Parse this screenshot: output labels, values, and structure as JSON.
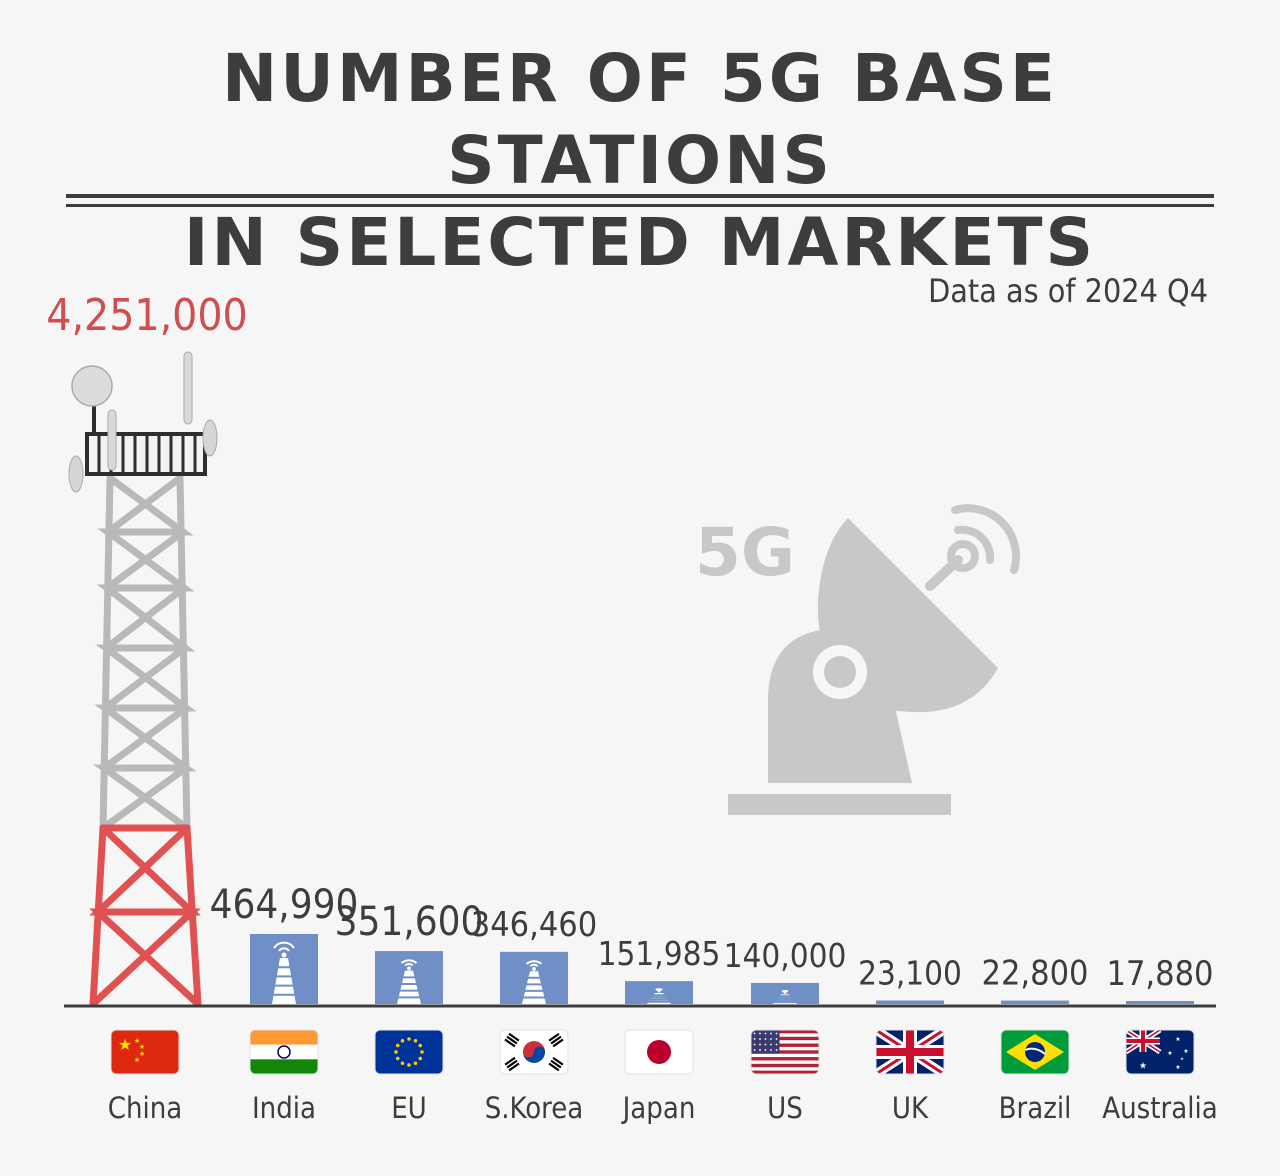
{
  "title_line1": "NUMBER OF 5G BASE STATIONS",
  "title_line2": "IN SELECTED MARKETS",
  "note": "Data as of 2024 Q4",
  "decoration": {
    "badge": "5G"
  },
  "colors": {
    "text": "#3d3d3d",
    "highlight": "#cf4e4e",
    "bar": "#6f8fc6",
    "tower_steel": "#cfcfcf",
    "tower_red": "#e05252",
    "icon_gray": "#c8c8c8"
  },
  "chart_data": {
    "type": "bar",
    "title": "NUMBER OF 5G BASE STATIONS IN SELECTED MARKETS",
    "categories": [
      "China",
      "India",
      "EU",
      "S.Korea",
      "Japan",
      "US",
      "UK",
      "Brazil",
      "Australia"
    ],
    "values": [
      4251000,
      464990,
      351600,
      346460,
      151985,
      140000,
      23100,
      22800,
      17880
    ],
    "value_labels": [
      "4,251,000",
      "464,990",
      "351,600",
      "346,460",
      "151,985",
      "140,000",
      "23,100",
      "22,800",
      "17,880"
    ],
    "flags": [
      "china-flag-icon",
      "india-flag-icon",
      "eu-flag-icon",
      "south-korea-flag-icon",
      "japan-flag-icon",
      "us-flag-icon",
      "uk-flag-icon",
      "brazil-flag-icon",
      "australia-flag-icon"
    ],
    "highlight_index": 0,
    "xlabel": "",
    "ylabel": "",
    "grid": false,
    "legend": "none"
  }
}
